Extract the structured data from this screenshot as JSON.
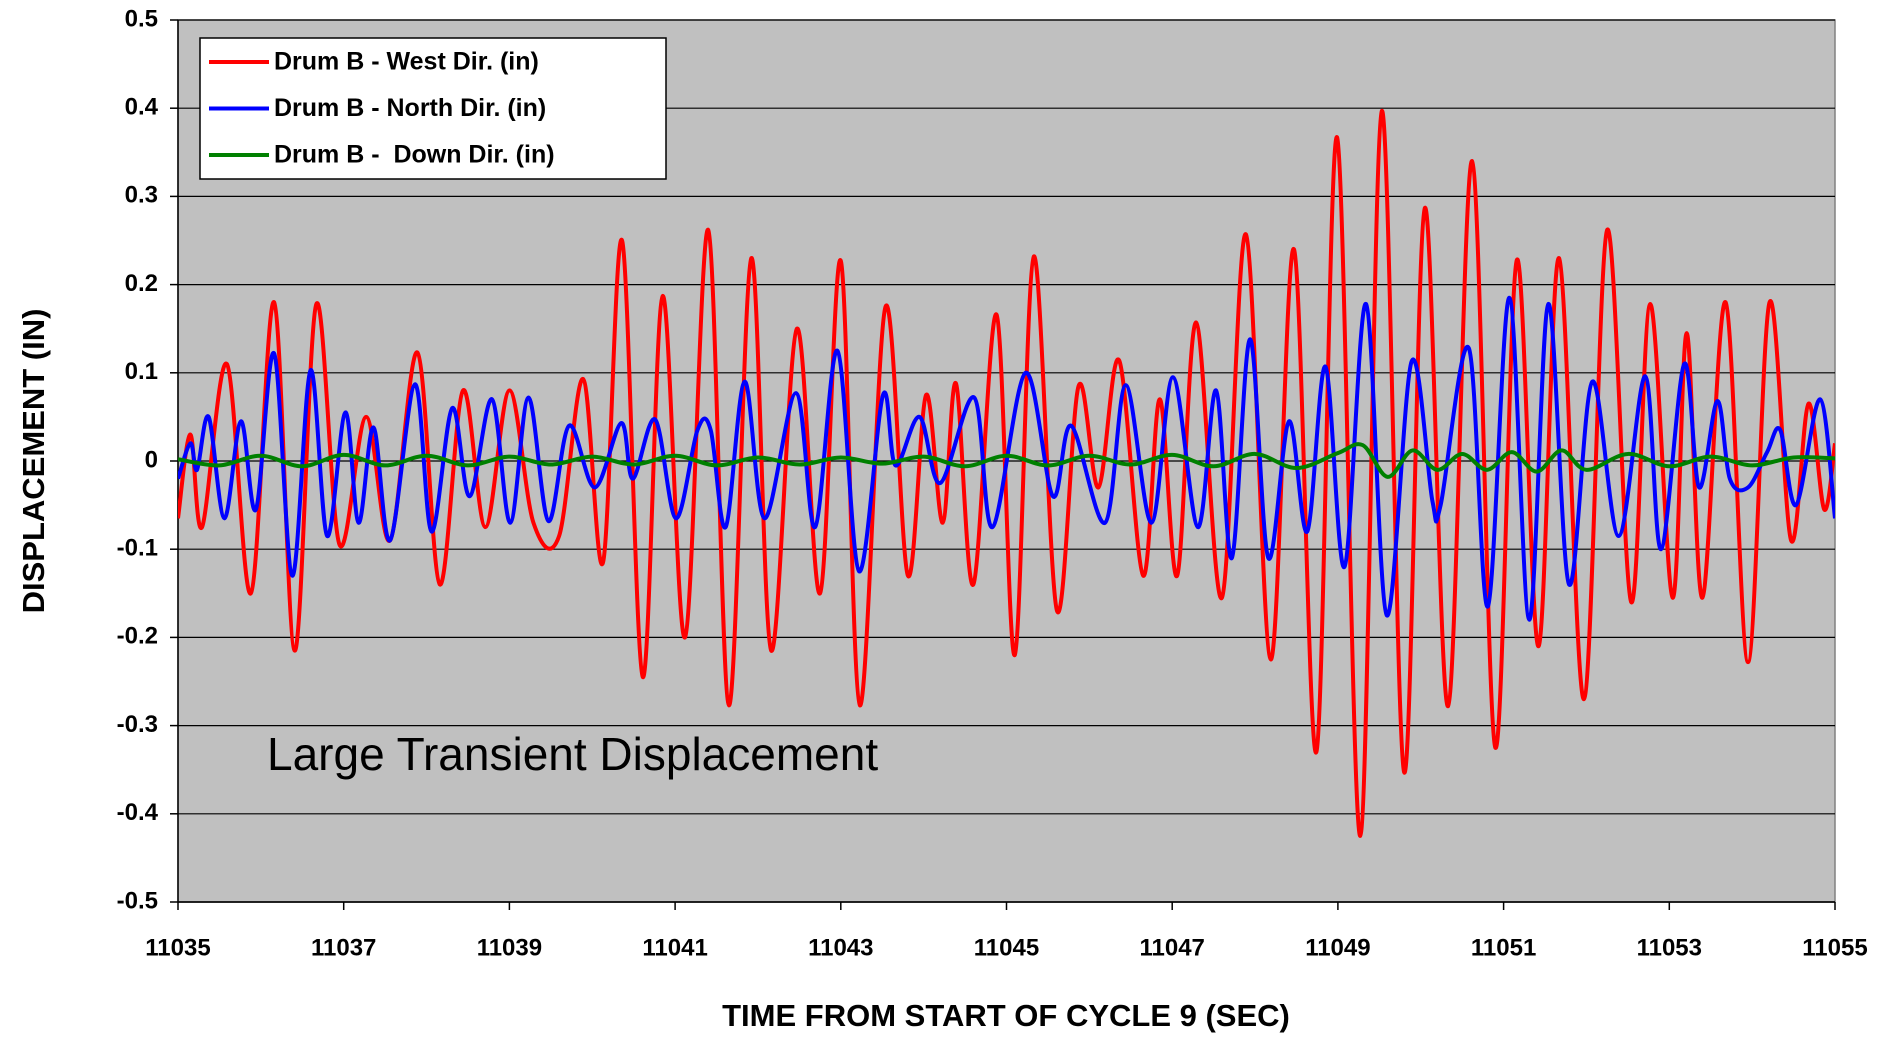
{
  "chart_data": {
    "type": "line",
    "xlabel": "TIME FROM START OF CYCLE 9 (SEC)",
    "ylabel": "DISPLACEMENT (IN)",
    "annotation": "Large Transient Displacement",
    "xlim": [
      11035,
      11055
    ],
    "xticks": [
      11035,
      11037,
      11039,
      11041,
      11043,
      11045,
      11047,
      11049,
      11051,
      11053,
      11055
    ],
    "ylim": [
      -0.5,
      0.5
    ],
    "yticks": [
      -0.5,
      -0.4,
      -0.3,
      -0.2,
      -0.1,
      0,
      0.1,
      0.2,
      0.3,
      0.4,
      0.5
    ],
    "grid": true,
    "legend": "upper left",
    "series": [
      {
        "name": "Drum B - West Dir. (in)",
        "color": "#ff0000",
        "x": [
          11035,
          11035.15,
          11035.29,
          11035.59,
          11035.88,
          11036.16,
          11036.41,
          11036.67,
          11036.95,
          11037.27,
          11037.56,
          11037.89,
          11038.16,
          11038.44,
          11038.71,
          11039,
          11039.29,
          11039.6,
          11039.89,
          11040.13,
          11040.36,
          11040.61,
          11040.85,
          11041.12,
          11041.4,
          11041.65,
          11041.92,
          11042.16,
          11042.47,
          11042.75,
          11043,
          11043.23,
          11043.54,
          11043.81,
          11044.03,
          11044.23,
          11044.39,
          11044.6,
          11044.88,
          11045.1,
          11045.33,
          11045.61,
          11045.87,
          11046.11,
          11046.36,
          11046.65,
          11046.85,
          11047.06,
          11047.29,
          11047.6,
          11047.89,
          11048.19,
          11048.47,
          11048.74,
          11048.99,
          11049.27,
          11049.53,
          11049.8,
          11050.05,
          11050.33,
          11050.62,
          11050.9,
          11051.16,
          11051.42,
          11051.67,
          11051.97,
          11052.25,
          11052.54,
          11052.77,
          11053.04,
          11053.21,
          11053.4,
          11053.68,
          11053.95,
          11054.21,
          11054.47,
          11054.68,
          11054.87,
          11055
        ],
        "values": [
          -0.065,
          0.03,
          -0.075,
          0.11,
          -0.15,
          0.18,
          -0.215,
          0.178,
          -0.095,
          0.05,
          -0.09,
          0.123,
          -0.14,
          0.08,
          -0.075,
          0.08,
          -0.07,
          -0.085,
          0.093,
          -0.115,
          0.25,
          -0.245,
          0.187,
          -0.2,
          0.262,
          -0.277,
          0.23,
          -0.215,
          0.15,
          -0.15,
          0.227,
          -0.277,
          0.175,
          -0.13,
          0.075,
          -0.07,
          0.088,
          -0.14,
          0.166,
          -0.22,
          0.232,
          -0.17,
          0.085,
          -0.03,
          0.114,
          -0.13,
          0.07,
          -0.13,
          0.157,
          -0.155,
          0.257,
          -0.225,
          0.24,
          -0.33,
          0.367,
          -0.425,
          0.397,
          -0.353,
          0.287,
          -0.278,
          0.34,
          -0.325,
          0.228,
          -0.21,
          0.23,
          -0.27,
          0.262,
          -0.16,
          0.178,
          -0.155,
          0.145,
          -0.155,
          0.18,
          -0.228,
          0.18,
          -0.09,
          0.065,
          -0.055,
          0.02
        ]
      },
      {
        "name": "Drum B - North Dir. (in)",
        "color": "#0000ff",
        "x": [
          11035,
          11035.15,
          11035.23,
          11035.37,
          11035.56,
          11035.76,
          11035.94,
          11036.16,
          11036.38,
          11036.6,
          11036.8,
          11037.02,
          11037.18,
          11037.36,
          11037.56,
          11037.86,
          11038.06,
          11038.31,
          11038.52,
          11038.79,
          11039.01,
          11039.23,
          11039.47,
          11039.72,
          11040.03,
          11040.35,
          11040.49,
          11040.76,
          11041.01,
          11041.27,
          11041.43,
          11041.61,
          11041.84,
          11042.08,
          11042.46,
          11042.69,
          11042.96,
          11043.22,
          11043.51,
          11043.66,
          11043.95,
          11044.2,
          11044.61,
          11044.83,
          11045.23,
          11045.56,
          11045.78,
          11046.19,
          11046.44,
          11046.75,
          11047.01,
          11047.31,
          11047.53,
          11047.72,
          11047.94,
          11048.16,
          11048.41,
          11048.63,
          11048.85,
          11049.08,
          11049.34,
          11049.59,
          11049.89,
          11050.14,
          11050.24,
          11050.58,
          11050.81,
          11051.07,
          11051.31,
          11051.54,
          11051.79,
          11052.07,
          11052.39,
          11052.71,
          11052.9,
          11053.18,
          11053.36,
          11053.58,
          11053.73,
          11053.95,
          11054.18,
          11054.34,
          11054.53,
          11054.82,
          11055
        ],
        "values": [
          -0.02,
          0.02,
          -0.01,
          0.05,
          -0.065,
          0.045,
          -0.055,
          0.122,
          -0.13,
          0.103,
          -0.085,
          0.055,
          -0.07,
          0.038,
          -0.09,
          0.087,
          -0.08,
          0.06,
          -0.04,
          0.07,
          -0.07,
          0.072,
          -0.068,
          0.04,
          -0.03,
          0.043,
          -0.02,
          0.047,
          -0.065,
          0.035,
          0.035,
          -0.075,
          0.09,
          -0.065,
          0.077,
          -0.075,
          0.125,
          -0.125,
          0.075,
          -0.005,
          0.05,
          -0.025,
          0.072,
          -0.075,
          0.1,
          -0.04,
          0.04,
          -0.07,
          0.086,
          -0.07,
          0.095,
          -0.075,
          0.08,
          -0.11,
          0.138,
          -0.11,
          0.045,
          -0.08,
          0.107,
          -0.12,
          0.178,
          -0.175,
          0.113,
          -0.045,
          -0.05,
          0.128,
          -0.165,
          0.185,
          -0.18,
          0.178,
          -0.14,
          0.09,
          -0.085,
          0.096,
          -0.1,
          0.11,
          -0.03,
          0.068,
          -0.02,
          -0.03,
          0.01,
          0.035,
          -0.05,
          0.07,
          -0.065
        ]
      },
      {
        "name": "Drum B -  Down Dir. (in)",
        "color": "#008000",
        "x": [
          11035,
          11035.5,
          11036,
          11036.5,
          11037,
          11037.5,
          11038,
          11038.5,
          11039,
          11039.5,
          11040,
          11040.5,
          11041,
          11041.5,
          11042,
          11042.5,
          11043,
          11043.5,
          11044,
          11044.5,
          11045,
          11045.5,
          11046,
          11046.5,
          11047,
          11047.5,
          11048,
          11048.5,
          11049,
          11049.3,
          11049.6,
          11049.9,
          11050.2,
          11050.5,
          11050.8,
          11051.1,
          11051.4,
          11051.7,
          11052,
          11052.5,
          11053,
          11053.5,
          11054,
          11054.5,
          11055
        ],
        "values": [
          0.002,
          -0.005,
          0.006,
          -0.006,
          0.007,
          -0.005,
          0.006,
          -0.005,
          0.005,
          -0.004,
          0.005,
          -0.004,
          0.006,
          -0.005,
          0.004,
          -0.004,
          0.004,
          -0.003,
          0.005,
          -0.006,
          0.006,
          -0.005,
          0.006,
          -0.004,
          0.007,
          -0.006,
          0.008,
          -0.008,
          0.009,
          0.018,
          -0.018,
          0.012,
          -0.01,
          0.008,
          -0.01,
          0.01,
          -0.012,
          0.012,
          -0.01,
          0.008,
          -0.006,
          0.005,
          -0.005,
          0.004,
          0.003
        ]
      }
    ]
  }
}
